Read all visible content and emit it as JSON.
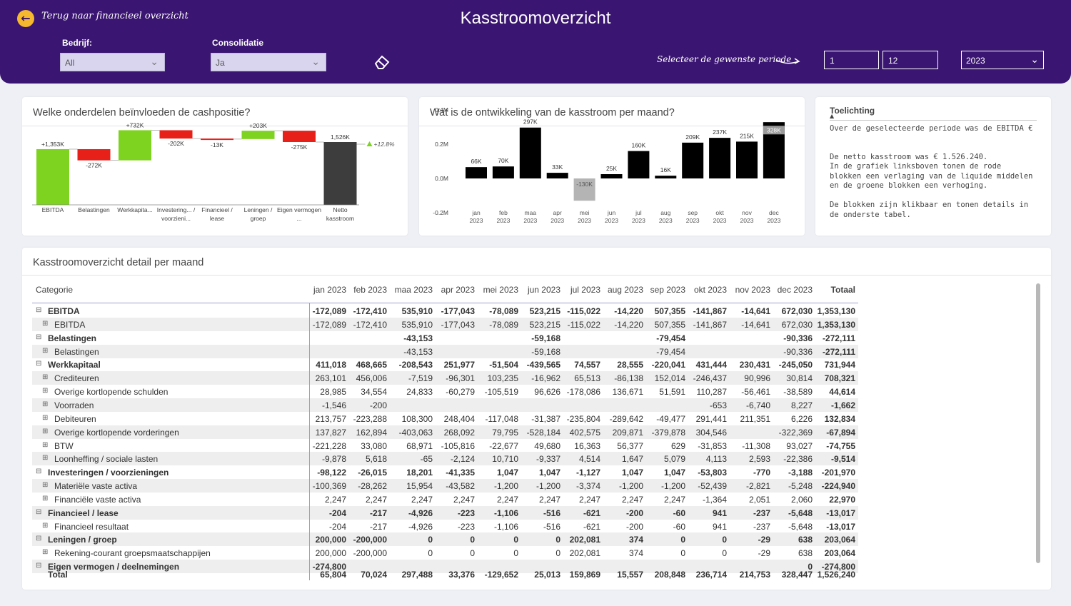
{
  "header": {
    "back_label": "Terug naar financieel overzicht",
    "title": "Kasstroomoverzicht",
    "bedrijf_label": "Bedrijf:",
    "bedrijf_value": "All",
    "consolidatie_label": "Consolidatie",
    "consolidatie_value": "Ja",
    "period_label": "Selecteer de gewenste periode",
    "period_from": "1",
    "period_to": "12",
    "year_value": "2023"
  },
  "waterfall": {
    "title": "Welke onderdelen beïnvloeden de cashpositie?",
    "accent_green": "#7ed321",
    "accent_red": "#e8201a",
    "total_color": "#3d3d3d",
    "pct_label": "+12.8%"
  },
  "monthly": {
    "title": "Wat is de ontwikkeling van de kasstroom per maand?"
  },
  "toelichting": {
    "title": "Toelichting",
    "line1": "Over de geselecteerde periode was de EBITDA €",
    "line2": "De netto kasstroom was € 1.526.240.",
    "line3": "In de grafiek linksboven tonen de rode blokken een verlaging van de liquide middelen en de groene blokken een verhoging.",
    "line4": "De blokken zijn klikbaar en tonen details in de onderste tabel."
  },
  "chart_data": [
    {
      "type": "waterfall",
      "title": "Welke onderdelen beïnvloeden de cashpositie?",
      "categories": [
        "EBITDA",
        "Belastingen",
        "Werkkapita...",
        "Investering... / voorzieni...",
        "Financieel / lease",
        "Leningen / groep",
        "Eigen vermogen ...",
        "Netto kasstroom"
      ],
      "values": [
        1353,
        -272,
        732,
        -202,
        -13,
        203,
        -275,
        1526
      ],
      "labels": [
        "+1,353K",
        "-272K",
        "+732K",
        "-202K",
        "-13K",
        "+203K",
        "-275K",
        "1,526K"
      ],
      "unit": "K"
    },
    {
      "type": "bar",
      "title": "Wat is de ontwikkeling van de kasstroom per maand?",
      "categories": [
        "jan 2023",
        "feb 2023",
        "maa 2023",
        "apr 2023",
        "mei 2023",
        "jun 2023",
        "jul 2023",
        "aug 2023",
        "sep 2023",
        "okt 2023",
        "nov 2023",
        "dec 2023"
      ],
      "values": [
        66,
        70,
        297,
        33,
        -130,
        25,
        160,
        16,
        209,
        237,
        215,
        328
      ],
      "labels": [
        "66K",
        "70K",
        "297K",
        "33K",
        "-130K",
        "25K",
        "160K",
        "16K",
        "209K",
        "237K",
        "215K",
        "328K"
      ],
      "yticks": [
        "0.4M",
        "0.2M",
        "0.0M",
        "-0.2M"
      ],
      "ylim": [
        -0.2,
        0.4
      ],
      "unit": "K"
    }
  ],
  "table": {
    "title": "Kasstroomoverzicht detail per maand",
    "columns": [
      "Categorie",
      "jan 2023",
      "feb 2023",
      "maa 2023",
      "apr 2023",
      "mei 2023",
      "jun 2023",
      "jul 2023",
      "aug 2023",
      "sep 2023",
      "okt 2023",
      "nov 2023",
      "dec 2023",
      "Totaal"
    ],
    "rows": [
      {
        "label": "EBITDA",
        "level": 0,
        "values": [
          "-172,089",
          "-172,410",
          "535,910",
          "-177,043",
          "-78,089",
          "523,215",
          "-115,022",
          "-14,220",
          "507,355",
          "-141,867",
          "-14,641",
          "672,030",
          "1,353,130"
        ]
      },
      {
        "label": "EBITDA",
        "level": 1,
        "values": [
          "-172,089",
          "-172,410",
          "535,910",
          "-177,043",
          "-78,089",
          "523,215",
          "-115,022",
          "-14,220",
          "507,355",
          "-141,867",
          "-14,641",
          "672,030",
          "1,353,130"
        ]
      },
      {
        "label": "Belastingen",
        "level": 0,
        "values": [
          "",
          "",
          "-43,153",
          "",
          "",
          "-59,168",
          "",
          "",
          "-79,454",
          "",
          "",
          "-90,336",
          "-272,111"
        ]
      },
      {
        "label": "Belastingen",
        "level": 1,
        "values": [
          "",
          "",
          "-43,153",
          "",
          "",
          "-59,168",
          "",
          "",
          "-79,454",
          "",
          "",
          "-90,336",
          "-272,111"
        ]
      },
      {
        "label": "Werkkapitaal",
        "level": 0,
        "values": [
          "411,018",
          "468,665",
          "-208,543",
          "251,977",
          "-51,504",
          "-439,565",
          "74,557",
          "28,555",
          "-220,041",
          "431,444",
          "230,431",
          "-245,050",
          "731,944"
        ]
      },
      {
        "label": "Crediteuren",
        "level": 1,
        "values": [
          "263,101",
          "456,006",
          "-7,519",
          "-96,301",
          "103,235",
          "-16,962",
          "65,513",
          "-86,138",
          "152,014",
          "-246,437",
          "90,996",
          "30,814",
          "708,321"
        ]
      },
      {
        "label": "Overige kortlopende schulden",
        "level": 1,
        "values": [
          "28,985",
          "34,554",
          "24,833",
          "-60,279",
          "-105,519",
          "96,626",
          "-178,086",
          "136,671",
          "51,591",
          "110,287",
          "-56,461",
          "-38,589",
          "44,614"
        ]
      },
      {
        "label": "Voorraden",
        "level": 1,
        "values": [
          "-1,546",
          "-200",
          "",
          "",
          "",
          "",
          "",
          "",
          "",
          "-653",
          "-6,740",
          "8,227",
          "-1,662"
        ]
      },
      {
        "label": "Debiteuren",
        "level": 1,
        "values": [
          "213,757",
          "-223,288",
          "108,300",
          "248,404",
          "-117,048",
          "-31,387",
          "-235,804",
          "-289,642",
          "-49,477",
          "291,441",
          "211,351",
          "6,226",
          "132,834"
        ]
      },
      {
        "label": "Overige kortlopende vorderingen",
        "level": 1,
        "values": [
          "137,827",
          "162,894",
          "-403,063",
          "268,092",
          "79,795",
          "-528,184",
          "402,575",
          "209,871",
          "-379,878",
          "304,546",
          "",
          "-322,369",
          "-67,894"
        ]
      },
      {
        "label": "BTW",
        "level": 1,
        "values": [
          "-221,228",
          "33,080",
          "68,971",
          "-105,816",
          "-22,677",
          "49,680",
          "16,363",
          "56,377",
          "629",
          "-31,853",
          "-11,308",
          "93,027",
          "-74,755"
        ]
      },
      {
        "label": "Loonheffing / sociale lasten",
        "level": 1,
        "values": [
          "-9,878",
          "5,618",
          "-65",
          "-2,124",
          "10,710",
          "-9,337",
          "4,514",
          "1,647",
          "5,079",
          "4,113",
          "2,593",
          "-22,386",
          "-9,514"
        ]
      },
      {
        "label": "Investeringen / voorzieningen",
        "level": 0,
        "values": [
          "-98,122",
          "-26,015",
          "18,201",
          "-41,335",
          "1,047",
          "1,047",
          "-1,127",
          "1,047",
          "1,047",
          "-53,803",
          "-770",
          "-3,188",
          "-201,970"
        ]
      },
      {
        "label": "Materiële vaste activa",
        "level": 1,
        "values": [
          "-100,369",
          "-28,262",
          "15,954",
          "-43,582",
          "-1,200",
          "-1,200",
          "-3,374",
          "-1,200",
          "-1,200",
          "-52,439",
          "-2,821",
          "-5,248",
          "-224,940"
        ]
      },
      {
        "label": "Financiële vaste activa",
        "level": 1,
        "values": [
          "2,247",
          "2,247",
          "2,247",
          "2,247",
          "2,247",
          "2,247",
          "2,247",
          "2,247",
          "2,247",
          "-1,364",
          "2,051",
          "2,060",
          "22,970"
        ]
      },
      {
        "label": "Financieel / lease",
        "level": 0,
        "values": [
          "-204",
          "-217",
          "-4,926",
          "-223",
          "-1,106",
          "-516",
          "-621",
          "-200",
          "-60",
          "941",
          "-237",
          "-5,648",
          "-13,017"
        ]
      },
      {
        "label": "Financieel resultaat",
        "level": 1,
        "values": [
          "-204",
          "-217",
          "-4,926",
          "-223",
          "-1,106",
          "-516",
          "-621",
          "-200",
          "-60",
          "941",
          "-237",
          "-5,648",
          "-13,017"
        ]
      },
      {
        "label": "Leningen / groep",
        "level": 0,
        "values": [
          "200,000",
          "-200,000",
          "0",
          "0",
          "0",
          "0",
          "202,081",
          "374",
          "0",
          "0",
          "-29",
          "638",
          "203,064"
        ]
      },
      {
        "label": "Rekening-courant groepsmaatschappijen",
        "level": 1,
        "values": [
          "200,000",
          "-200,000",
          "0",
          "0",
          "0",
          "0",
          "202,081",
          "374",
          "0",
          "0",
          "-29",
          "638",
          "203,064"
        ]
      },
      {
        "label": "Eigen vermogen / deelnemingen",
        "level": 0,
        "values": [
          "-274,800",
          "",
          "",
          "",
          "",
          "",
          "",
          "",
          "",
          "",
          "",
          "0",
          "-274,800"
        ]
      }
    ],
    "total": {
      "label": "Total",
      "values": [
        "65,804",
        "70,024",
        "297,488",
        "33,376",
        "-129,652",
        "25,013",
        "159,869",
        "15,557",
        "208,848",
        "236,714",
        "214,753",
        "328,447",
        "1,526,240"
      ]
    }
  }
}
